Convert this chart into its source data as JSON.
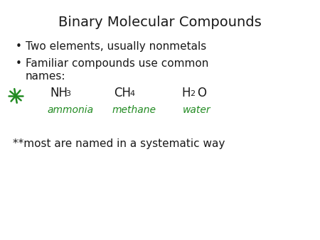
{
  "title": "Binary Molecular Compounds",
  "bullet1": "Two elements, usually nonmetals",
  "bullet2_line1": "Familiar compounds use common",
  "bullet2_line2": "names:",
  "last_line": "**most are named in a systematic way",
  "name1": "ammonia",
  "name2": "methane",
  "name3": "water",
  "bg_color": "#ffffff",
  "text_color": "#1a1a1a",
  "green_color": "#228B22",
  "title_fontsize": 14,
  "body_fontsize": 11,
  "compound_fontsize": 12,
  "sub_fontsize": 8,
  "handwritten_fontsize": 10,
  "last_fontsize": 11
}
